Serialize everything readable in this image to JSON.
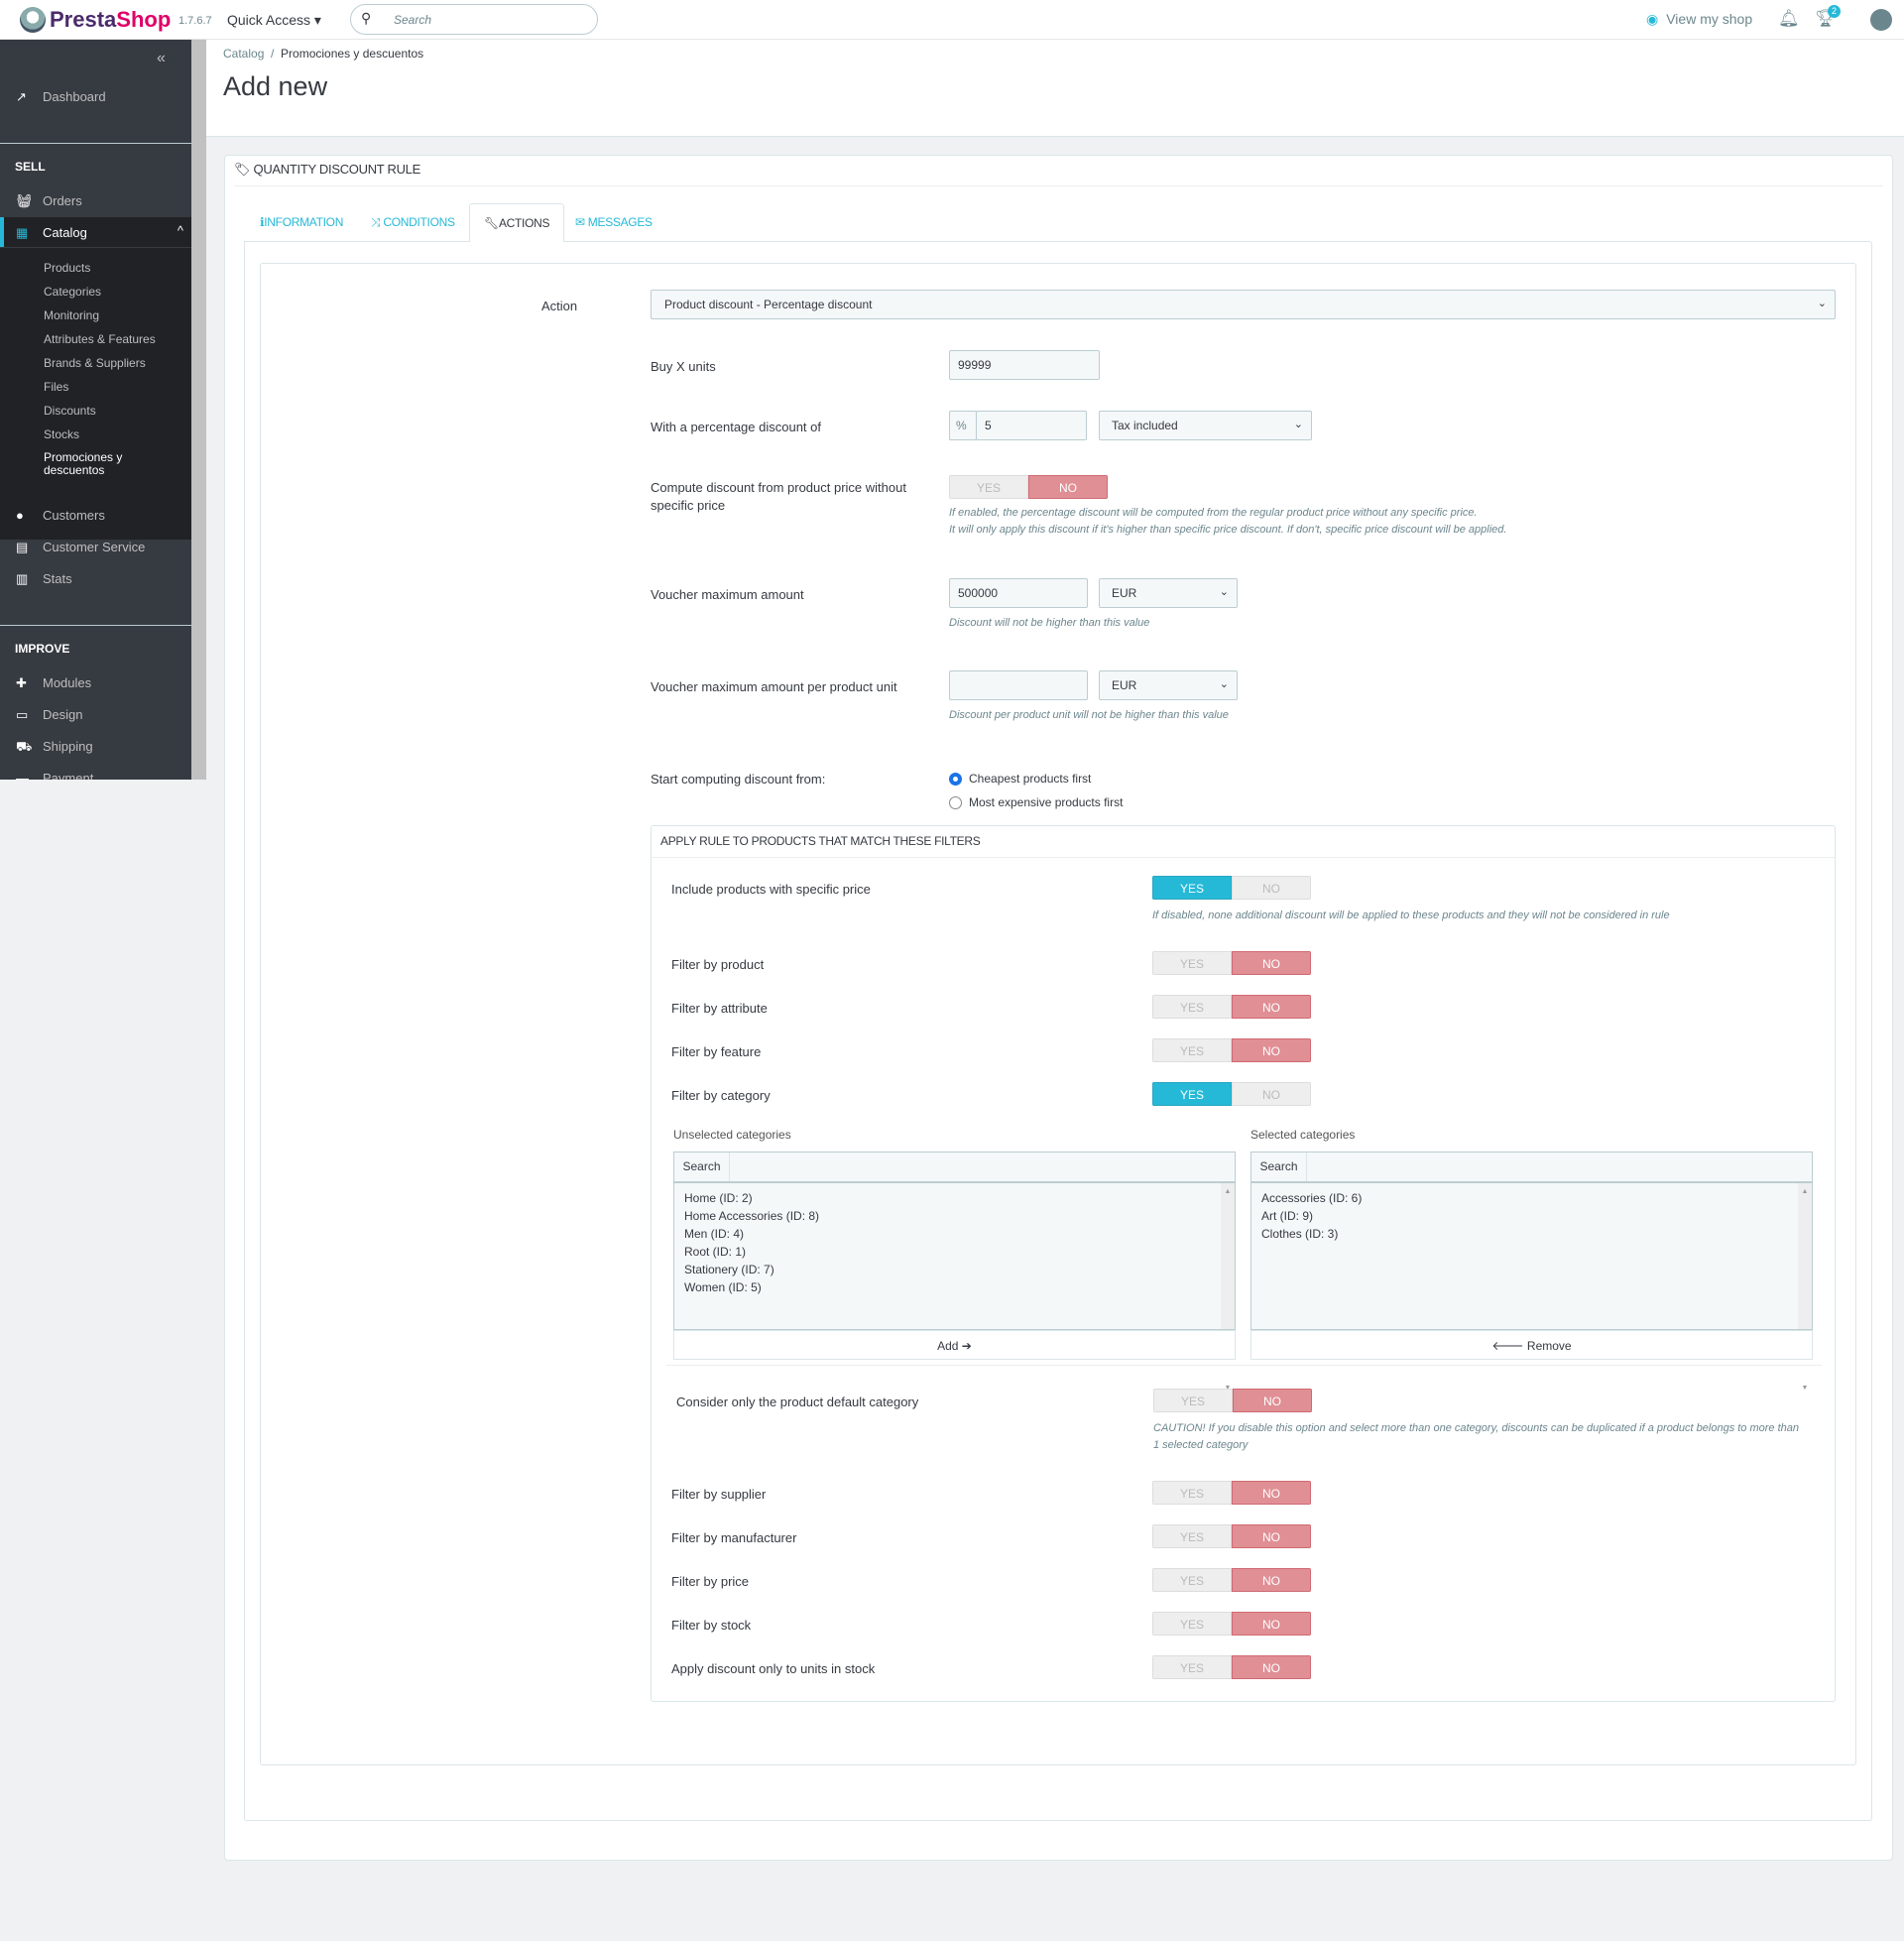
{
  "topbar": {
    "brand_a": "Presta",
    "brand_b": "Shop",
    "version": "1.7.6.7",
    "quick_access": "Quick Access ▾",
    "search_placeholder": "Search",
    "view_shop": "View my shop",
    "notif_count": "2"
  },
  "sidebar": {
    "dashboard": "Dashboard",
    "sell": "SELL",
    "orders": "Orders",
    "catalog": "Catalog",
    "catalog_items": [
      "Products",
      "Categories",
      "Monitoring",
      "Attributes & Features",
      "Brands & Suppliers",
      "Files",
      "Discounts",
      "Stocks",
      "Promociones y descuentos"
    ],
    "customers": "Customers",
    "customer_service": "Customer Service",
    "stats": "Stats",
    "improve": "IMPROVE",
    "modules": "Modules",
    "design": "Design",
    "shipping": "Shipping",
    "payment": "Payment"
  },
  "breadcrumb": {
    "parent": "Catalog",
    "current": "Promociones y descuentos"
  },
  "page_title": "Add new",
  "panel": {
    "heading": "QUANTITY DISCOUNT RULE",
    "tabs": [
      "INFORMATION",
      "CONDITIONS",
      "ACTIONS",
      "MESSAGES"
    ],
    "active_tab": "ACTIONS"
  },
  "form": {
    "action_label": "Action",
    "action_value": "Product discount - Percentage discount",
    "buy_label": "Buy X units",
    "buy_value": "99999",
    "pct_label": "With a percentage discount of",
    "pct_addon": "%",
    "pct_value": "5",
    "tax_value": "Tax included",
    "compute_label": "Compute discount from product price without specific price",
    "compute_value": "NO",
    "compute_help1": "If enabled, the percentage discount will be computed from the regular product price without any specific price.",
    "compute_help2": "It will only apply this discount if it's higher than specific price discount. If don't, specific price discount will be applied.",
    "vmax_label": "Voucher maximum amount",
    "vmax_value": "500000",
    "vmax_currency": "EUR",
    "vmax_help": "Discount will not be higher than this value",
    "vunit_label": "Voucher maximum amount per product unit",
    "vunit_value": "",
    "vunit_currency": "EUR",
    "vunit_help": "Discount per product unit will not be higher than this value",
    "start_label": "Start computing discount from:",
    "start_options": [
      "Cheapest products first",
      "Most expensive products first"
    ],
    "start_selected": "Cheapest products first"
  },
  "filters": {
    "heading": "APPLY RULE TO PRODUCTS THAT MATCH THESE FILTERS",
    "yes": "YES",
    "no": "NO",
    "include": {
      "label": "Include products with specific price",
      "value": "YES",
      "help": "If disabled, none additional discount will be applied to these products and they will not be considered in rule"
    },
    "top": [
      {
        "label": "Filter by product",
        "value": "NO"
      },
      {
        "label": "Filter by attribute",
        "value": "NO"
      },
      {
        "label": "Filter by feature",
        "value": "NO"
      },
      {
        "label": "Filter by category",
        "value": "YES"
      }
    ],
    "unselected_label": "Unselected categories",
    "selected_label": "Selected categories",
    "search_label": "Search",
    "unselected": [
      "Home (ID: 2)",
      "Home Accessories (ID: 8)",
      "Men (ID: 4)",
      "Root (ID: 1)",
      "Stationery (ID: 7)",
      "Women (ID: 5)"
    ],
    "selected": [
      "Accessories (ID: 6)",
      "Art (ID: 9)",
      "Clothes (ID: 3)"
    ],
    "add_label": "Add ➔",
    "remove_label": "🡐 Remove",
    "default_cat": {
      "label": "Consider only the product default category",
      "value": "NO",
      "help": "CAUTION! If you disable this option and select more than one category, discounts can be duplicated if a product belongs to more than 1 selected category"
    },
    "bottom": [
      {
        "label": "Filter by supplier",
        "value": "NO"
      },
      {
        "label": "Filter by manufacturer",
        "value": "NO"
      },
      {
        "label": "Filter by price",
        "value": "NO"
      },
      {
        "label": "Filter by stock",
        "value": "NO"
      },
      {
        "label": "Apply discount only to units in stock",
        "value": "NO"
      }
    ]
  },
  "colors": {
    "accent": "#25b9d7",
    "yes_on": "#25b9d7",
    "no_on": "#e08f95",
    "sidebar": "#363a41"
  }
}
